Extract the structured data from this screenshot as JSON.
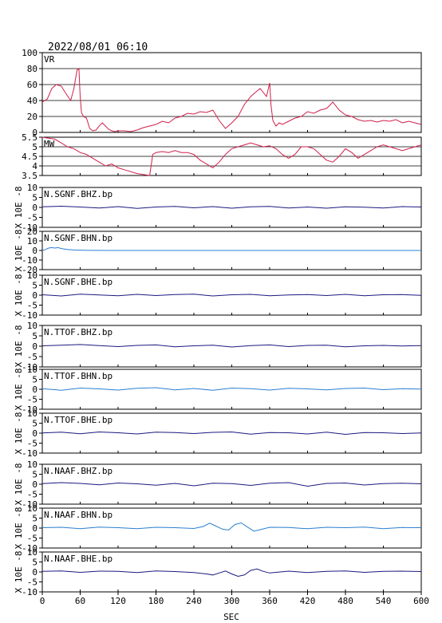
{
  "title": "2022/08/01 06:10",
  "xlabel": "SEC",
  "x_ticks": [
    "0",
    "60",
    "120",
    "180",
    "240",
    "300",
    "360",
    "420",
    "480",
    "540",
    "600"
  ],
  "colors": {
    "frame": "#000000",
    "vr_line": "#d0204a",
    "mw_line": "#d0204a",
    "trace_dark": "#1a1a80",
    "trace_light": "#2a7fd0"
  },
  "chart_data": [
    {
      "type": "line",
      "name": "VR",
      "label": "VR",
      "xlim": [
        0,
        600
      ],
      "ylim": [
        0,
        100
      ],
      "y_ticks": [
        "0",
        "20",
        "40",
        "60",
        "80",
        "100"
      ],
      "grid": true,
      "x": [
        0,
        8,
        15,
        22,
        30,
        38,
        45,
        50,
        55,
        58,
        60,
        62,
        65,
        70,
        75,
        80,
        85,
        90,
        95,
        100,
        105,
        110,
        115,
        120,
        130,
        140,
        150,
        160,
        170,
        180,
        190,
        200,
        210,
        220,
        230,
        240,
        250,
        260,
        270,
        280,
        290,
        300,
        310,
        320,
        330,
        340,
        345,
        350,
        355,
        358,
        360,
        362,
        365,
        370,
        375,
        380,
        390,
        400,
        410,
        420,
        430,
        440,
        450,
        460,
        470,
        480,
        490,
        500,
        510,
        520,
        530,
        540,
        550,
        560,
        570,
        580,
        590,
        600
      ],
      "values": [
        38,
        42,
        55,
        60,
        58,
        48,
        40,
        55,
        78,
        80,
        45,
        25,
        20,
        18,
        5,
        2,
        3,
        8,
        12,
        8,
        4,
        2,
        1,
        2,
        2,
        1,
        3,
        6,
        8,
        10,
        14,
        12,
        18,
        20,
        24,
        23,
        26,
        25,
        28,
        15,
        5,
        12,
        20,
        35,
        45,
        52,
        55,
        50,
        45,
        55,
        62,
        35,
        15,
        8,
        12,
        10,
        14,
        18,
        20,
        26,
        24,
        28,
        30,
        38,
        28,
        22,
        20,
        16,
        14,
        15,
        13,
        15,
        14,
        16,
        12,
        14,
        12,
        10
      ]
    },
    {
      "type": "line",
      "name": "MW",
      "label": "MW",
      "xlim": [
        0,
        600
      ],
      "ylim": [
        3.5,
        5.5
      ],
      "y_ticks": [
        "3.5",
        "4",
        "4.5",
        "5",
        "5.5"
      ],
      "grid": true,
      "x": [
        0,
        10,
        20,
        30,
        40,
        50,
        60,
        70,
        80,
        90,
        100,
        110,
        120,
        130,
        140,
        150,
        160,
        170,
        175,
        180,
        190,
        200,
        210,
        220,
        230,
        240,
        250,
        260,
        270,
        280,
        290,
        300,
        310,
        320,
        330,
        340,
        350,
        360,
        370,
        380,
        390,
        400,
        410,
        420,
        430,
        440,
        450,
        460,
        470,
        480,
        490,
        500,
        510,
        520,
        530,
        540,
        550,
        560,
        570,
        580,
        590,
        600
      ],
      "values": [
        5.5,
        5.45,
        5.4,
        5.2,
        5.0,
        4.9,
        4.7,
        4.6,
        4.4,
        4.2,
        4.0,
        4.1,
        3.9,
        3.8,
        3.7,
        3.6,
        3.55,
        3.5,
        4.6,
        4.7,
        4.75,
        4.7,
        4.8,
        4.7,
        4.7,
        4.6,
        4.3,
        4.1,
        3.9,
        4.2,
        4.6,
        4.9,
        5.0,
        5.1,
        5.2,
        5.1,
        5.0,
        5.05,
        4.9,
        4.6,
        4.4,
        4.6,
        5.0,
        5.0,
        4.9,
        4.6,
        4.3,
        4.2,
        4.5,
        4.9,
        4.7,
        4.4,
        4.6,
        4.8,
        5.0,
        5.1,
        5.0,
        4.9,
        4.8,
        4.9,
        5.0,
        5.1
      ]
    },
    {
      "type": "line",
      "name": "N.SGNF.BHZ.bp",
      "label": "N.SGNF.BHZ.bp",
      "unit_label": "X 10E -8",
      "color": "dark",
      "xlim": [
        0,
        600
      ],
      "ylim": [
        -10,
        10
      ],
      "y_ticks": [
        "-10",
        "-5",
        "0",
        "5",
        "10"
      ],
      "x": [
        0,
        30,
        60,
        90,
        120,
        150,
        180,
        210,
        240,
        270,
        300,
        330,
        360,
        390,
        420,
        450,
        480,
        510,
        540,
        570,
        600
      ],
      "values": [
        0.3,
        0.6,
        0.2,
        -0.3,
        0.4,
        -0.5,
        0.2,
        0.5,
        -0.2,
        0.4,
        -0.4,
        0.3,
        0.5,
        -0.3,
        0.2,
        -0.4,
        0.3,
        0.1,
        -0.3,
        0.4,
        0.2
      ]
    },
    {
      "type": "line",
      "name": "N.SGNF.BHN.bp",
      "label": "N.SGNF.BHN.bp",
      "unit_label": "X 10E -8",
      "color": "light",
      "xlim": [
        0,
        600
      ],
      "ylim": [
        -20,
        20
      ],
      "y_ticks": [
        "-20",
        "-10",
        "0",
        "10",
        "20"
      ],
      "x": [
        0,
        5,
        10,
        15,
        20,
        25,
        30,
        40,
        50,
        60,
        70,
        80,
        90,
        100,
        120,
        150,
        200,
        300,
        400,
        500,
        600
      ],
      "values": [
        0,
        1,
        2.5,
        3,
        2.5,
        3,
        2,
        1,
        0.5,
        0.3,
        0.2,
        0.1,
        0.1,
        0,
        0,
        0,
        0,
        0,
        0,
        0,
        0
      ]
    },
    {
      "type": "line",
      "name": "N.SGNF.BHE.bp",
      "label": "N.SGNF.BHE.bp",
      "unit_label": "X 10E -8",
      "color": "dark",
      "xlim": [
        0,
        600
      ],
      "ylim": [
        -10,
        10
      ],
      "y_ticks": [
        "-10",
        "-5",
        "0",
        "5",
        "10"
      ],
      "x": [
        0,
        30,
        60,
        90,
        120,
        150,
        180,
        210,
        240,
        270,
        300,
        330,
        360,
        390,
        420,
        450,
        480,
        510,
        540,
        570,
        600
      ],
      "values": [
        0.2,
        -0.4,
        0.5,
        0.1,
        -0.3,
        0.4,
        -0.2,
        0.3,
        0.5,
        -0.4,
        0.2,
        0.4,
        -0.3,
        0.1,
        0.3,
        -0.2,
        0.4,
        -0.3,
        0.2,
        0.3,
        -0.1
      ]
    },
    {
      "type": "line",
      "name": "N.TTOF.BHZ.bp",
      "label": "N.TTOF.BHZ.bp",
      "unit_label": "X 10E -8",
      "color": "dark",
      "xlim": [
        0,
        600
      ],
      "ylim": [
        -10,
        10
      ],
      "y_ticks": [
        "-10",
        "-5",
        "0",
        "5",
        "10"
      ],
      "x": [
        0,
        30,
        60,
        90,
        120,
        150,
        180,
        210,
        240,
        270,
        300,
        330,
        360,
        390,
        420,
        450,
        480,
        510,
        540,
        570,
        600
      ],
      "values": [
        0.2,
        0.5,
        0.8,
        0.3,
        -0.2,
        0.4,
        0.6,
        -0.3,
        0.2,
        0.5,
        -0.4,
        0.3,
        0.6,
        -0.2,
        0.4,
        0.5,
        -0.3,
        0.2,
        0.4,
        0.1,
        0.3
      ]
    },
    {
      "type": "line",
      "name": "N.TTOF.BHN.bp",
      "label": "N.TTOF.BHN.bp",
      "unit_label": "X 10E -8",
      "color": "light",
      "xlim": [
        0,
        600
      ],
      "ylim": [
        -10,
        10
      ],
      "y_ticks": [
        "-10",
        "-5",
        "0",
        "5",
        "10"
      ],
      "x": [
        0,
        30,
        60,
        90,
        120,
        150,
        180,
        210,
        240,
        270,
        300,
        330,
        360,
        390,
        420,
        450,
        480,
        510,
        540,
        570,
        600
      ],
      "values": [
        0.3,
        -0.5,
        0.6,
        0.2,
        -0.4,
        0.5,
        0.8,
        -0.3,
        0.4,
        -0.5,
        0.6,
        0.3,
        -0.4,
        0.5,
        0.2,
        -0.3,
        0.4,
        0.6,
        -0.2,
        0.3,
        0.1
      ]
    },
    {
      "type": "line",
      "name": "N.TTOF.BHE.bp",
      "label": "N.TTOF.BHE.bp",
      "unit_label": "X 10E -8",
      "color": "dark",
      "xlim": [
        0,
        600
      ],
      "ylim": [
        -10,
        10
      ],
      "y_ticks": [
        "-10",
        "-5",
        "0",
        "5",
        "10"
      ],
      "x": [
        0,
        30,
        60,
        90,
        120,
        150,
        180,
        210,
        240,
        270,
        300,
        330,
        360,
        390,
        420,
        450,
        480,
        510,
        540,
        570,
        600
      ],
      "values": [
        0.1,
        0.5,
        -0.3,
        0.6,
        0.2,
        -0.4,
        0.5,
        0.3,
        -0.2,
        0.4,
        0.6,
        -0.5,
        0.3,
        0.2,
        -0.4,
        0.5,
        -0.6,
        0.3,
        0.2,
        -0.2,
        0.1
      ]
    },
    {
      "type": "line",
      "name": "N.NAAF.BHZ.bp",
      "label": "N.NAAF.BHZ.bp",
      "unit_label": "X 10E -8",
      "color": "dark",
      "xlim": [
        0,
        600
      ],
      "ylim": [
        -10,
        10
      ],
      "y_ticks": [
        "-10",
        "-5",
        "0",
        "5",
        "10"
      ],
      "x": [
        0,
        30,
        60,
        90,
        120,
        150,
        180,
        210,
        240,
        270,
        300,
        330,
        360,
        390,
        420,
        450,
        480,
        510,
        540,
        570,
        600
      ],
      "values": [
        0.3,
        0.8,
        0.4,
        -0.3,
        0.6,
        0.2,
        -0.5,
        0.4,
        -0.8,
        0.5,
        0.3,
        -0.6,
        0.5,
        0.8,
        -1.0,
        0.4,
        0.6,
        -0.4,
        0.3,
        0.5,
        0.2
      ]
    },
    {
      "type": "line",
      "name": "N.NAAF.BHN.bp",
      "label": "N.NAAF.BHN.bp",
      "unit_label": "X 10E -8",
      "color": "light",
      "xlim": [
        0,
        600
      ],
      "ylim": [
        -10,
        10
      ],
      "y_ticks": [
        "-10",
        "-5",
        "0",
        "5",
        "10"
      ],
      "x": [
        0,
        30,
        60,
        90,
        120,
        150,
        180,
        210,
        240,
        255,
        265,
        275,
        285,
        295,
        305,
        315,
        325,
        335,
        345,
        360,
        390,
        420,
        450,
        480,
        510,
        540,
        570,
        600
      ],
      "values": [
        0.2,
        0.4,
        -0.3,
        0.5,
        0.2,
        -0.3,
        0.4,
        0.2,
        -0.2,
        0.8,
        2.5,
        1.0,
        -0.5,
        -1.0,
        1.8,
        2.6,
        0.5,
        -1.5,
        -0.8,
        0.4,
        0.3,
        -0.3,
        0.4,
        0.2,
        0.5,
        -0.3,
        0.3,
        0.2
      ]
    },
    {
      "type": "line",
      "name": "N.NAAF.BHE.bp",
      "label": "N.NAAF.BHE.bp",
      "unit_label": "X 10E -8",
      "color": "dark",
      "xlim": [
        0,
        600
      ],
      "ylim": [
        -10,
        10
      ],
      "y_ticks": [
        "-10",
        "-5",
        "0",
        "5",
        "10"
      ],
      "x": [
        0,
        30,
        60,
        90,
        120,
        150,
        180,
        210,
        240,
        260,
        270,
        280,
        290,
        300,
        310,
        320,
        330,
        340,
        350,
        360,
        390,
        420,
        450,
        480,
        510,
        540,
        570,
        600
      ],
      "values": [
        0.3,
        0.5,
        -0.2,
        0.4,
        0.3,
        -0.3,
        0.5,
        0.2,
        -0.3,
        -1.0,
        -1.5,
        -0.5,
        0.5,
        -1.0,
        -2.2,
        -1.5,
        0.8,
        1.5,
        0.3,
        -0.5,
        0.4,
        -0.3,
        0.3,
        0.5,
        -0.2,
        0.3,
        0.4,
        0.2
      ]
    }
  ]
}
